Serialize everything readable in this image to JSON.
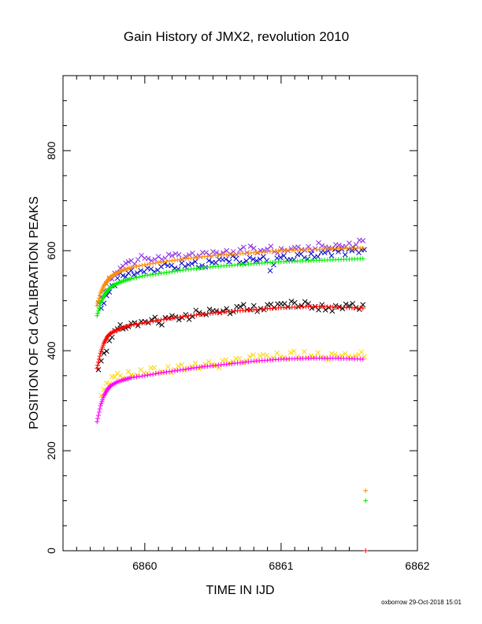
{
  "chart_data": {
    "type": "scatter",
    "title": "Gain History of JMX2, revolution 2010",
    "xlabel": "TIME IN IJD",
    "ylabel": "POSITION OF Cd CALIBRATION PEAKS",
    "xlim": [
      6859.4,
      6862
    ],
    "ylim": [
      0,
      950
    ],
    "x_ticks": [
      "6860",
      "6861",
      "6862"
    ],
    "y_ticks": [
      "0",
      "200",
      "400",
      "600",
      "800"
    ],
    "grid": false,
    "legend": "none",
    "series": [
      {
        "color": "#8a2be2",
        "marker": "x",
        "scattered": true,
        "points": [
          [
            6859.66,
            495
          ],
          [
            6859.7,
            520
          ],
          [
            6859.74,
            545
          ],
          [
            6859.78,
            555
          ],
          [
            6859.82,
            565
          ],
          [
            6859.86,
            575
          ],
          [
            6859.9,
            580
          ],
          [
            6859.95,
            582
          ],
          [
            6860.0,
            585
          ],
          [
            6860.05,
            580
          ],
          [
            6860.1,
            588
          ],
          [
            6860.15,
            585
          ],
          [
            6860.2,
            590
          ],
          [
            6860.25,
            592
          ],
          [
            6860.3,
            588
          ],
          [
            6860.35,
            595
          ],
          [
            6860.4,
            590
          ],
          [
            6860.45,
            596
          ],
          [
            6860.5,
            598
          ],
          [
            6860.55,
            592
          ],
          [
            6860.6,
            600
          ],
          [
            6860.65,
            598
          ],
          [
            6860.7,
            602
          ],
          [
            6860.75,
            596
          ],
          [
            6860.8,
            605
          ],
          [
            6860.85,
            600
          ],
          [
            6860.9,
            603
          ],
          [
            6860.95,
            598
          ],
          [
            6861.0,
            604
          ],
          [
            6861.05,
            600
          ],
          [
            6861.1,
            606
          ],
          [
            6861.15,
            602
          ],
          [
            6861.2,
            608
          ],
          [
            6861.25,
            604
          ],
          [
            6861.3,
            610
          ],
          [
            6861.35,
            606
          ],
          [
            6861.4,
            612
          ],
          [
            6861.45,
            608
          ],
          [
            6861.5,
            615
          ],
          [
            6861.55,
            612
          ],
          [
            6861.6,
            620
          ]
        ]
      },
      {
        "color": "#0000cd",
        "marker": "x",
        "scattered": true,
        "points": [
          [
            6859.68,
            485
          ],
          [
            6859.72,
            510
          ],
          [
            6859.76,
            530
          ],
          [
            6859.8,
            545
          ],
          [
            6859.84,
            550
          ],
          [
            6859.88,
            555
          ],
          [
            6859.92,
            552
          ],
          [
            6859.97,
            560
          ],
          [
            6860.02,
            565
          ],
          [
            6860.07,
            558
          ],
          [
            6860.12,
            568
          ],
          [
            6860.17,
            570
          ],
          [
            6860.22,
            565
          ],
          [
            6860.27,
            575
          ],
          [
            6860.32,
            572
          ],
          [
            6860.37,
            578
          ],
          [
            6860.42,
            570
          ],
          [
            6860.47,
            580
          ],
          [
            6860.52,
            576
          ],
          [
            6860.57,
            582
          ],
          [
            6860.62,
            578
          ],
          [
            6860.67,
            584
          ],
          [
            6860.72,
            575
          ],
          [
            6860.77,
            586
          ],
          [
            6860.82,
            580
          ],
          [
            6860.87,
            588
          ],
          [
            6860.92,
            560
          ],
          [
            6860.97,
            585
          ],
          [
            6861.02,
            590
          ],
          [
            6861.07,
            582
          ],
          [
            6861.12,
            592
          ],
          [
            6861.17,
            586
          ],
          [
            6861.22,
            594
          ],
          [
            6861.27,
            588
          ],
          [
            6861.32,
            596
          ],
          [
            6861.37,
            590
          ],
          [
            6861.42,
            598
          ],
          [
            6861.47,
            592
          ],
          [
            6861.52,
            600
          ],
          [
            6861.57,
            596
          ],
          [
            6861.61,
            602
          ]
        ]
      },
      {
        "color": "#ff8c00",
        "marker": "+",
        "scattered": false,
        "points": [
          [
            6859.65,
            490
          ],
          [
            6859.675,
            515
          ],
          [
            6859.7,
            530
          ],
          [
            6859.725,
            540
          ],
          [
            6859.75,
            548
          ],
          [
            6859.8,
            556
          ],
          [
            6859.85,
            562
          ],
          [
            6859.9,
            566
          ],
          [
            6860.0,
            572
          ],
          [
            6860.1,
            576
          ],
          [
            6860.2,
            580
          ],
          [
            6860.3,
            584
          ],
          [
            6860.4,
            587
          ],
          [
            6860.5,
            590
          ],
          [
            6860.6,
            592
          ],
          [
            6860.7,
            594
          ],
          [
            6860.8,
            596
          ],
          [
            6860.9,
            598
          ],
          [
            6861.0,
            600
          ],
          [
            6861.1,
            601
          ],
          [
            6861.2,
            602
          ],
          [
            6861.3,
            603
          ],
          [
            6861.4,
            604
          ],
          [
            6861.5,
            605
          ],
          [
            6861.6,
            605
          ],
          [
            6861.62,
            120
          ]
        ]
      },
      {
        "color": "#00ee00",
        "marker": "+",
        "scattered": false,
        "points": [
          [
            6859.65,
            470
          ],
          [
            6859.675,
            495
          ],
          [
            6859.7,
            510
          ],
          [
            6859.725,
            520
          ],
          [
            6859.75,
            527
          ],
          [
            6859.8,
            535
          ],
          [
            6859.85,
            540
          ],
          [
            6859.9,
            544
          ],
          [
            6860.0,
            550
          ],
          [
            6860.1,
            554
          ],
          [
            6860.2,
            558
          ],
          [
            6860.3,
            562
          ],
          [
            6860.4,
            565
          ],
          [
            6860.5,
            568
          ],
          [
            6860.6,
            570
          ],
          [
            6860.7,
            572
          ],
          [
            6860.8,
            574
          ],
          [
            6860.9,
            576
          ],
          [
            6861.0,
            578
          ],
          [
            6861.1,
            579
          ],
          [
            6861.2,
            580
          ],
          [
            6861.3,
            581
          ],
          [
            6861.4,
            582
          ],
          [
            6861.5,
            583
          ],
          [
            6861.6,
            584
          ],
          [
            6861.62,
            100
          ]
        ]
      },
      {
        "color": "#000000",
        "marker": "x",
        "scattered": true,
        "points": [
          [
            6859.66,
            362
          ],
          [
            6859.7,
            395
          ],
          [
            6859.74,
            420
          ],
          [
            6859.78,
            440
          ],
          [
            6859.82,
            452
          ],
          [
            6859.86,
            445
          ],
          [
            6859.9,
            455
          ],
          [
            6859.95,
            450
          ],
          [
            6860.0,
            458
          ],
          [
            6860.05,
            462
          ],
          [
            6860.1,
            455
          ],
          [
            6860.15,
            466
          ],
          [
            6860.2,
            470
          ],
          [
            6860.25,
            462
          ],
          [
            6860.3,
            472
          ],
          [
            6860.35,
            468
          ],
          [
            6860.4,
            476
          ],
          [
            6860.45,
            472
          ],
          [
            6860.5,
            480
          ],
          [
            6860.55,
            476
          ],
          [
            6860.6,
            484
          ],
          [
            6860.65,
            478
          ],
          [
            6860.7,
            488
          ],
          [
            6860.75,
            482
          ],
          [
            6860.8,
            490
          ],
          [
            6860.85,
            484
          ],
          [
            6860.9,
            492
          ],
          [
            6860.95,
            486
          ],
          [
            6861.0,
            494
          ],
          [
            6861.05,
            488
          ],
          [
            6861.1,
            496
          ],
          [
            6861.15,
            490
          ],
          [
            6861.2,
            494
          ],
          [
            6861.25,
            488
          ],
          [
            6861.3,
            492
          ],
          [
            6861.35,
            486
          ],
          [
            6861.4,
            490
          ],
          [
            6861.45,
            484
          ],
          [
            6861.5,
            490
          ],
          [
            6861.55,
            486
          ],
          [
            6861.6,
            492
          ]
        ]
      },
      {
        "color": "#ff0000",
        "marker": "+",
        "scattered": false,
        "points": [
          [
            6859.65,
            365
          ],
          [
            6859.675,
            395
          ],
          [
            6859.7,
            415
          ],
          [
            6859.725,
            428
          ],
          [
            6859.75,
            435
          ],
          [
            6859.8,
            442
          ],
          [
            6859.85,
            447
          ],
          [
            6859.9,
            451
          ],
          [
            6860.0,
            456
          ],
          [
            6860.1,
            461
          ],
          [
            6860.2,
            465
          ],
          [
            6860.3,
            469
          ],
          [
            6860.4,
            472
          ],
          [
            6860.5,
            475
          ],
          [
            6860.6,
            478
          ],
          [
            6860.7,
            480
          ],
          [
            6860.8,
            482
          ],
          [
            6860.9,
            484
          ],
          [
            6861.0,
            486
          ],
          [
            6861.1,
            487
          ],
          [
            6861.2,
            488
          ],
          [
            6861.3,
            488
          ],
          [
            6861.4,
            487
          ],
          [
            6861.5,
            486
          ],
          [
            6861.6,
            485
          ],
          [
            6861.62,
            0
          ]
        ]
      },
      {
        "color": "#ffd700",
        "marker": "x",
        "scattered": true,
        "points": [
          [
            6859.68,
            310
          ],
          [
            6859.72,
            335
          ],
          [
            6859.76,
            348
          ],
          [
            6859.8,
            355
          ],
          [
            6859.84,
            345
          ],
          [
            6859.88,
            358
          ],
          [
            6859.92,
            350
          ],
          [
            6859.97,
            362
          ],
          [
            6860.02,
            355
          ],
          [
            6860.07,
            366
          ],
          [
            6860.12,
            358
          ],
          [
            6860.17,
            368
          ],
          [
            6860.22,
            362
          ],
          [
            6860.27,
            372
          ],
          [
            6860.32,
            365
          ],
          [
            6860.37,
            375
          ],
          [
            6860.42,
            368
          ],
          [
            6860.47,
            378
          ],
          [
            6860.52,
            370
          ],
          [
            6860.57,
            380
          ],
          [
            6860.62,
            374
          ],
          [
            6860.67,
            384
          ],
          [
            6860.72,
            376
          ],
          [
            6860.77,
            388
          ],
          [
            6860.82,
            380
          ],
          [
            6860.87,
            392
          ],
          [
            6860.92,
            384
          ],
          [
            6860.97,
            395
          ],
          [
            6861.02,
            386
          ],
          [
            6861.07,
            396
          ],
          [
            6861.12,
            388
          ],
          [
            6861.17,
            398
          ],
          [
            6861.22,
            390
          ],
          [
            6861.27,
            396
          ],
          [
            6861.32,
            386
          ],
          [
            6861.37,
            394
          ],
          [
            6861.42,
            388
          ],
          [
            6861.47,
            394
          ],
          [
            6861.52,
            386
          ],
          [
            6861.57,
            392
          ],
          [
            6861.61,
            388
          ]
        ]
      },
      {
        "color": "#ff00ff",
        "marker": "+",
        "scattered": false,
        "points": [
          [
            6859.65,
            258
          ],
          [
            6859.675,
            290
          ],
          [
            6859.7,
            310
          ],
          [
            6859.725,
            322
          ],
          [
            6859.75,
            330
          ],
          [
            6859.8,
            338
          ],
          [
            6859.85,
            342
          ],
          [
            6859.9,
            346
          ],
          [
            6860.0,
            350
          ],
          [
            6860.1,
            355
          ],
          [
            6860.2,
            359
          ],
          [
            6860.3,
            363
          ],
          [
            6860.4,
            367
          ],
          [
            6860.5,
            370
          ],
          [
            6860.6,
            373
          ],
          [
            6860.7,
            376
          ],
          [
            6860.8,
            379
          ],
          [
            6860.9,
            381
          ],
          [
            6861.0,
            383
          ],
          [
            6861.1,
            384
          ],
          [
            6861.2,
            385
          ],
          [
            6861.3,
            385
          ],
          [
            6861.4,
            385
          ],
          [
            6861.5,
            384
          ],
          [
            6861.6,
            383
          ]
        ]
      }
    ]
  },
  "footer_text": "oxborrow 29-Oct-2018 15:01"
}
